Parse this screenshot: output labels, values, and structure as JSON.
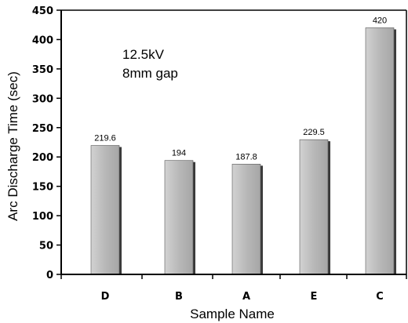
{
  "chart_data": {
    "type": "bar",
    "categories": [
      "D",
      "B",
      "A",
      "E",
      "C"
    ],
    "values": [
      219.6,
      194,
      187.8,
      229.5,
      420
    ],
    "data_labels": [
      "219.6",
      "194",
      "187.8",
      "229.5",
      "420"
    ],
    "xlabel": "Sample Name",
    "ylabel": "Arc Discharge Time (sec)",
    "ylim": [
      0,
      450
    ],
    "yticks": [
      0,
      50,
      100,
      150,
      200,
      250,
      300,
      350,
      400,
      450
    ],
    "annotations": [
      "12.5kV",
      "8mm gap"
    ],
    "grid": false,
    "bar_color": "#b8b8b8",
    "bar_edge_color": "#555555"
  }
}
